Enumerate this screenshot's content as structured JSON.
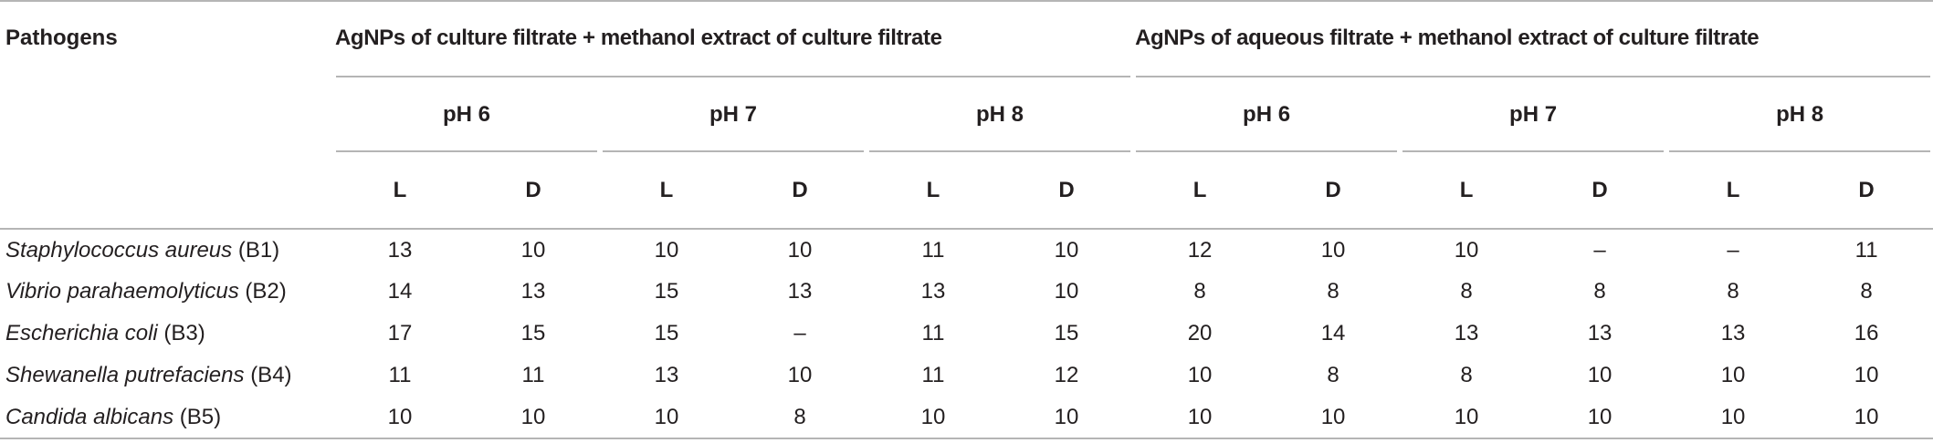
{
  "table": {
    "header": {
      "pathogens": "Pathogens",
      "groups": [
        "AgNPs of culture filtrate + methanol extract of culture filtrate",
        "AgNPs of aqueous filtrate + methanol extract of culture filtrate"
      ],
      "ph": [
        "pH 6",
        "pH 7",
        "pH 8",
        "pH 6",
        "pH 7",
        "pH 8"
      ],
      "ld": [
        "L",
        "D",
        "L",
        "D",
        "L",
        "D",
        "L",
        "D",
        "L",
        "D",
        "L",
        "D"
      ]
    },
    "rows": [
      {
        "species": "Staphylococcus aureus",
        "code": "(B1)",
        "values": [
          13,
          10,
          10,
          10,
          11,
          10,
          12,
          10,
          10,
          "–",
          "–",
          11
        ]
      },
      {
        "species": "Vibrio parahaemolyticus",
        "code": "(B2)",
        "values": [
          14,
          13,
          15,
          13,
          13,
          10,
          8,
          8,
          8,
          8,
          8,
          8
        ]
      },
      {
        "species": "Escherichia coli",
        "code": "(B3)",
        "values": [
          17,
          15,
          15,
          "–",
          11,
          15,
          20,
          14,
          13,
          13,
          13,
          16
        ]
      },
      {
        "species": "Shewanella putrefaciens",
        "code": "(B4)",
        "values": [
          11,
          11,
          13,
          10,
          11,
          12,
          10,
          8,
          8,
          10,
          10,
          10
        ]
      },
      {
        "species": "Candida albicans",
        "code": "(B5)",
        "values": [
          10,
          10,
          10,
          8,
          10,
          10,
          10,
          10,
          10,
          10,
          10,
          10
        ]
      }
    ]
  }
}
